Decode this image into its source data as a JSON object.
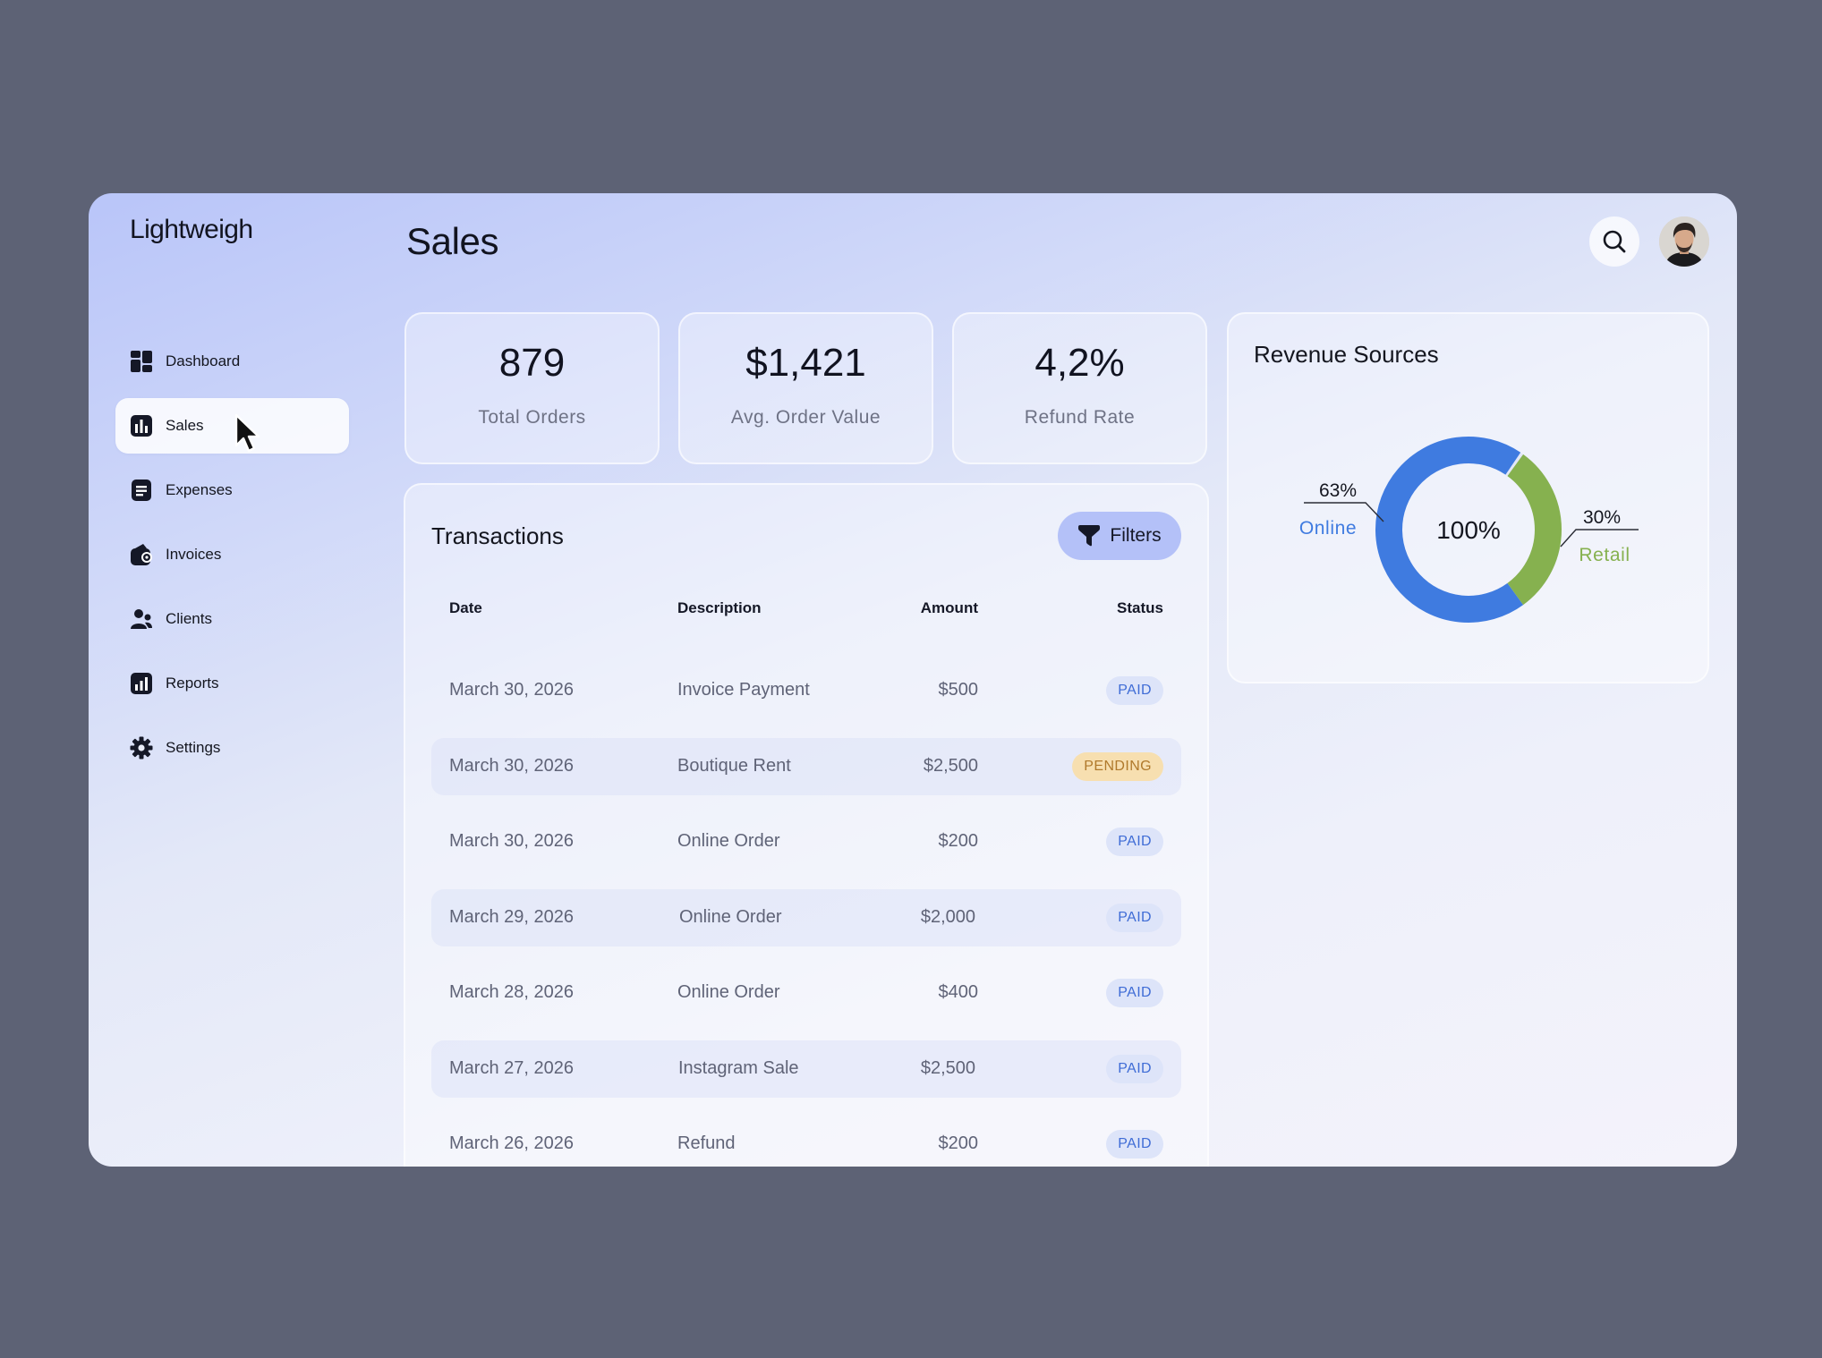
{
  "app": {
    "logo": "Lightweigh",
    "page_title": "Sales"
  },
  "sidebar": {
    "items": [
      {
        "label": "Dashboard",
        "icon": "dashboard-icon",
        "active": false
      },
      {
        "label": "Sales",
        "icon": "bar-chart-icon",
        "active": true
      },
      {
        "label": "Expenses",
        "icon": "document-icon",
        "active": false
      },
      {
        "label": "Invoices",
        "icon": "wallet-icon",
        "active": false
      },
      {
        "label": "Clients",
        "icon": "users-icon",
        "active": false
      },
      {
        "label": "Reports",
        "icon": "reports-icon",
        "active": false
      },
      {
        "label": "Settings",
        "icon": "gear-icon",
        "active": false
      }
    ]
  },
  "stats": [
    {
      "value": "879",
      "label": "Total Orders"
    },
    {
      "value": "$1,421",
      "label": "Avg. Order Value"
    },
    {
      "value": "4,2%",
      "label": "Refund Rate"
    }
  ],
  "revenue": {
    "title": "Revenue Sources",
    "center_label": "100%",
    "segments": [
      {
        "name": "Online",
        "percent_label": "63%",
        "share": 0.63,
        "color": "#3f7be0"
      },
      {
        "name": "Retail",
        "percent_label": "30%",
        "share": 0.3,
        "color": "#86b14f"
      }
    ]
  },
  "transactions": {
    "title": "Transactions",
    "filters_label": "Filters",
    "columns": {
      "date": "Date",
      "description": "Description",
      "amount": "Amount",
      "status": "Status"
    },
    "rows": [
      {
        "date": "March 30, 2026",
        "description": "Invoice Payment",
        "amount": "$500",
        "status": "PAID"
      },
      {
        "date": "March 30, 2026",
        "description": "Boutique Rent",
        "amount": "$2,500",
        "status": "PENDING"
      },
      {
        "date": "March 30, 2026",
        "description": "Online Order",
        "amount": "$200",
        "status": "PAID"
      },
      {
        "date": "March 29, 2026",
        "description": "Online Order",
        "amount": "$2,000",
        "status": "PAID"
      },
      {
        "date": "March 28, 2026",
        "description": "Online Order",
        "amount": "$400",
        "status": "PAID"
      },
      {
        "date": "March 27, 2026",
        "description": "Instagram Sale",
        "amount": "$2,500",
        "status": "PAID"
      },
      {
        "date": "March 26, 2026",
        "description": "Refund",
        "amount": "$200",
        "status": "PAID"
      }
    ]
  },
  "colors": {
    "accent": "#b4c1f8",
    "paid": "#3f6cd6",
    "pending": "#b0792b"
  }
}
